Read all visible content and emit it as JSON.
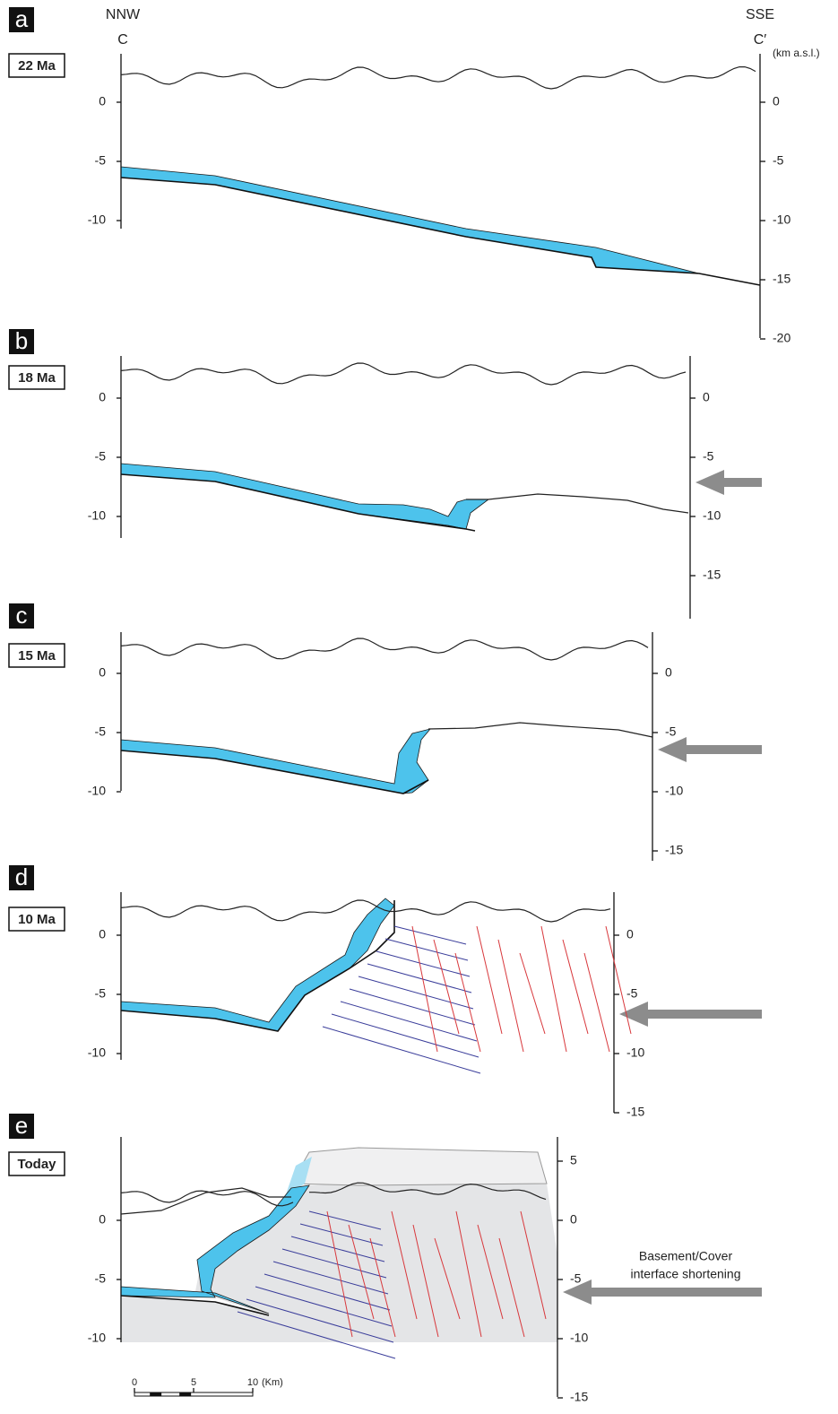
{
  "header": {
    "left_direction": "NNW",
    "left_point": "C",
    "right_direction": "SSE",
    "right_point": "C′",
    "unit": "(km a.s.l.)"
  },
  "panels": [
    {
      "letter": "a",
      "age": "22 Ma",
      "left_ticks": [
        0,
        -5,
        -10
      ],
      "right_ticks": [
        0,
        -5,
        -10,
        -15,
        -20
      ]
    },
    {
      "letter": "b",
      "age": "18 Ma",
      "left_ticks": [
        0,
        -5,
        -10
      ],
      "right_ticks": [
        0,
        -5,
        -10,
        -15
      ]
    },
    {
      "letter": "c",
      "age": "15 Ma",
      "left_ticks": [
        0,
        -5,
        -10
      ],
      "right_ticks": [
        0,
        -5,
        -10,
        -15
      ]
    },
    {
      "letter": "d",
      "age": "10 Ma",
      "left_ticks": [
        0,
        -5,
        -10
      ],
      "right_ticks": [
        0,
        -5,
        -10,
        -15
      ]
    },
    {
      "letter": "e",
      "age": "Today",
      "left_ticks": [
        0,
        -5,
        -10
      ],
      "right_ticks": [
        5,
        0,
        -5,
        -10,
        -15
      ]
    }
  ],
  "arrow_label": [
    "Basement/Cover",
    "interface shortening"
  ],
  "scale_bar": {
    "ticks": [
      0,
      5,
      10
    ],
    "unit": "(Km)"
  }
}
